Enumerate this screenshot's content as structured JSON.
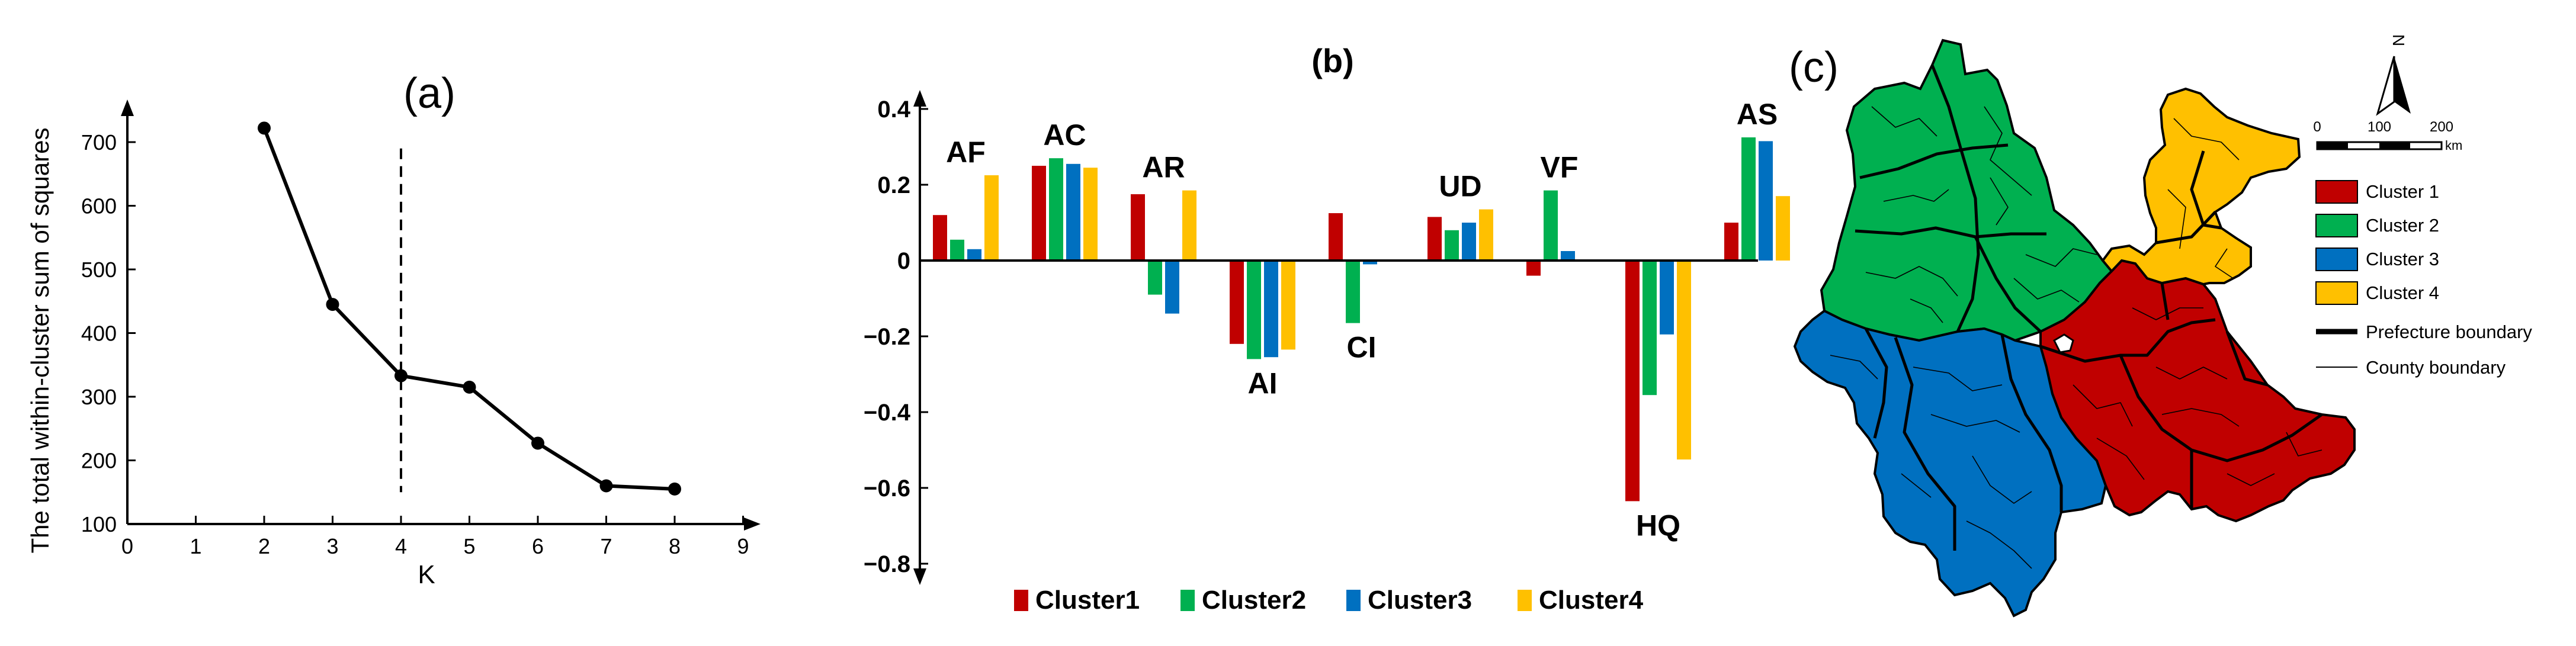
{
  "chart_data": [
    {
      "type": "line",
      "panel": "(a)",
      "xlabel": "K",
      "ylabel": "The total within-cluster  sum of squares",
      "xlim": [
        0,
        9
      ],
      "ylim": [
        100,
        750
      ],
      "xticks": [
        0,
        1,
        2,
        3,
        4,
        5,
        6,
        7,
        8,
        9
      ],
      "yticks": [
        100,
        200,
        300,
        400,
        500,
        600,
        700
      ],
      "x": [
        2,
        3,
        4,
        5,
        6,
        7,
        8
      ],
      "y": [
        722,
        445,
        333,
        315,
        227,
        160,
        155
      ],
      "optimal_k_marker": 4,
      "marker_y_range": [
        150,
        690
      ]
    },
    {
      "type": "bar",
      "panel": "(b)",
      "title": "(b)",
      "categories": [
        "AF",
        "AC",
        "AR",
        "AI",
        "CI",
        "UD",
        "VF",
        "HQ",
        "AS"
      ],
      "category_labels": [
        "AF",
        "AC",
        "AR",
        "AI",
        "CI",
        "UD",
        "VF",
        "HQ",
        "AS"
      ],
      "ylim": [
        -0.8,
        0.4
      ],
      "yticks": [
        "0.4",
        "0.2",
        "0",
        "−0.2",
        "−0.4",
        "−0.6",
        "−0.8"
      ],
      "series": [
        {
          "name": "Cluster1",
          "color": "#c00000",
          "values": [
            0.12,
            0.25,
            0.175,
            -0.22,
            0.125,
            0.115,
            -0.04,
            -0.635,
            0.1
          ]
        },
        {
          "name": "Cluster2",
          "color": "#00b050",
          "values": [
            0.055,
            0.27,
            -0.09,
            -0.26,
            -0.165,
            0.08,
            0.185,
            -0.355,
            0.325
          ]
        },
        {
          "name": "Cluster3",
          "color": "#0070c0",
          "values": [
            0.03,
            0.255,
            -0.14,
            -0.255,
            -0.01,
            0.1,
            0.025,
            -0.195,
            0.315
          ]
        },
        {
          "name": "Cluster4",
          "color": "#ffc000",
          "values": [
            0.225,
            0.245,
            0.185,
            -0.235,
            0.0,
            0.135,
            0.0,
            -0.525,
            0.17
          ]
        }
      ],
      "legend": [
        "Cluster1",
        "Cluster2",
        "Cluster3",
        "Cluster4"
      ]
    }
  ],
  "map": {
    "label": "(c)",
    "north": "N",
    "scale": {
      "ticks": [
        "0",
        "100",
        "200"
      ],
      "unit": "km"
    },
    "legend": [
      {
        "label": "Cluster 1",
        "color": "#c00000"
      },
      {
        "label": "Cluster 2",
        "color": "#00b050"
      },
      {
        "label": "Cluster 3",
        "color": "#0070c0"
      },
      {
        "label": "Cluster 4",
        "color": "#ffc000"
      },
      {
        "label": "Prefecture boundary"
      },
      {
        "label": "County boundary"
      }
    ]
  }
}
